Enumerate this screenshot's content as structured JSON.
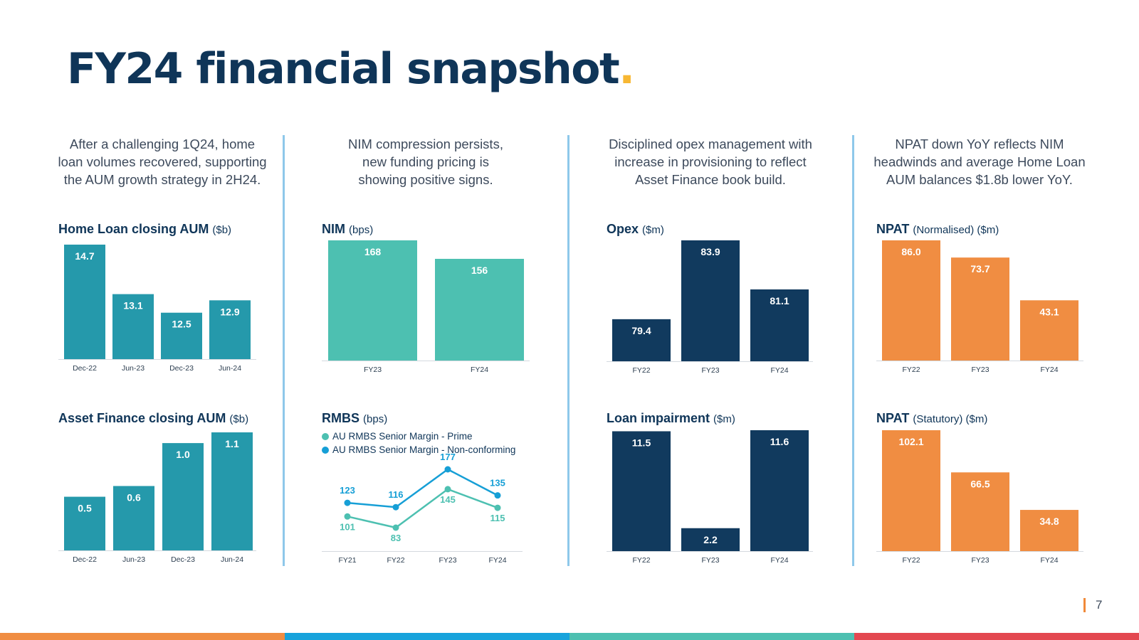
{
  "page": {
    "title": "FY24 financial snapshot",
    "title_dot": ".",
    "page_number": "7"
  },
  "colors": {
    "teal_dark": "#2599ab",
    "teal_light": "#4dc0b1",
    "navy": "#113a5e",
    "orange": "#f08d42",
    "rmbs_prime": "#4dc0b1",
    "rmbs_nonconforming": "#169fd6",
    "footer": [
      "#f08d42",
      "#17a3dc",
      "#4dc0b1",
      "#e34850"
    ]
  },
  "columns": [
    {
      "text_lines": [
        "After a challenging 1Q24, home",
        "loan volumes recovered, supporting",
        "the AUM growth strategy in 2H24."
      ]
    },
    {
      "text_lines": [
        "NIM compression persists,",
        "new funding pricing is",
        "showing positive signs."
      ]
    },
    {
      "text_lines": [
        "Disciplined opex management with",
        "increase in provisioning to reflect",
        "Asset Finance book build."
      ]
    },
    {
      "text_lines": [
        "NPAT down YoY reflects NIM",
        "headwinds and average Home Loan",
        "AUM balances $1.8b lower YoY."
      ]
    }
  ],
  "rmbs_legend": [
    "AU RMBS Senior Margin - Prime",
    "AU RMBS Senior Margin - Non-conforming"
  ],
  "chart_data": [
    {
      "id": "home_loan",
      "type": "bar",
      "title": "Home Loan closing AUM",
      "unit": "($b)",
      "categories": [
        "Dec-22",
        "Jun-23",
        "Dec-23",
        "Jun-24"
      ],
      "values": [
        14.7,
        13.1,
        12.5,
        12.9
      ],
      "labels": [
        "14.7",
        "13.1",
        "12.5",
        "12.9"
      ],
      "ylim": [
        11,
        14.7
      ],
      "color": "#2599ab"
    },
    {
      "id": "asset_finance",
      "type": "bar",
      "title": "Asset Finance closing AUM",
      "unit": "($b)",
      "categories": [
        "Dec-22",
        "Jun-23",
        "Dec-23",
        "Jun-24"
      ],
      "values": [
        0.5,
        0.6,
        1.0,
        1.1
      ],
      "labels": [
        "0.5",
        "0.6",
        "1.0",
        "1.1"
      ],
      "ylim": [
        0,
        1.1
      ],
      "color": "#2599ab"
    },
    {
      "id": "nim",
      "type": "bar",
      "title": "NIM",
      "unit": "(bps)",
      "categories": [
        "FY23",
        "FY24"
      ],
      "values": [
        168,
        156
      ],
      "labels": [
        "168",
        "156"
      ],
      "ylim": [
        90,
        168
      ],
      "color": "#4dc0b1"
    },
    {
      "id": "rmbs",
      "type": "line",
      "title": "RMBS",
      "unit": "(bps)",
      "x": [
        "FY21",
        "FY22",
        "FY23",
        "FY24"
      ],
      "series": [
        {
          "name": "AU RMBS Senior Margin - Prime",
          "values": [
            101,
            83,
            145,
            115
          ],
          "color": "#4dc0b1"
        },
        {
          "name": "AU RMBS Senior Margin - Non-conforming",
          "values": [
            123,
            116,
            177,
            135
          ],
          "color": "#169fd6"
        }
      ],
      "ylim": [
        60,
        180
      ]
    },
    {
      "id": "opex",
      "type": "bar",
      "title": "Opex",
      "unit": "($m)",
      "categories": [
        "FY22",
        "FY23",
        "FY24"
      ],
      "values": [
        79.4,
        83.9,
        81.1
      ],
      "labels": [
        "79.4",
        "83.9",
        "81.1"
      ],
      "ylim": [
        77,
        83.9
      ],
      "color": "#113a5e"
    },
    {
      "id": "loan_impairment",
      "type": "bar",
      "title": "Loan impairment",
      "unit": "($m)",
      "categories": [
        "FY22",
        "FY23",
        "FY24"
      ],
      "values": [
        11.5,
        2.2,
        11.6
      ],
      "labels": [
        "11.5",
        "2.2",
        "11.6"
      ],
      "ylim": [
        0,
        11.6
      ],
      "color": "#113a5e"
    },
    {
      "id": "npat_norm",
      "type": "bar",
      "title": "NPAT",
      "unit": "(Normalised) ($m)",
      "categories": [
        "FY22",
        "FY23",
        "FY24"
      ],
      "values": [
        86.0,
        73.7,
        43.1
      ],
      "labels": [
        "86.0",
        "73.7",
        "43.1"
      ],
      "ylim": [
        0,
        86.0
      ],
      "color": "#f08d42"
    },
    {
      "id": "npat_stat",
      "type": "bar",
      "title": "NPAT",
      "unit": "(Statutory) ($m)",
      "categories": [
        "FY22",
        "FY23",
        "FY24"
      ],
      "values": [
        102.1,
        66.5,
        34.8
      ],
      "labels": [
        "102.1",
        "66.5",
        "34.8"
      ],
      "ylim": [
        0,
        102.1
      ],
      "color": "#f08d42"
    }
  ]
}
